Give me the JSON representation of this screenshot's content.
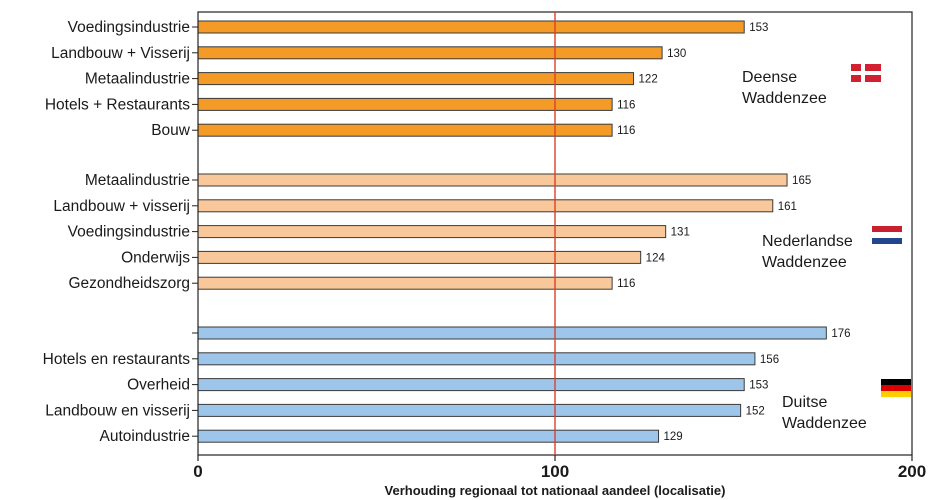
{
  "chart_data": {
    "type": "bar",
    "orientation": "horizontal",
    "xlabel": "Verhouding regionaal tot nationaal aandeel (localisatie)",
    "xlim": [
      0,
      200
    ],
    "xticks": [
      0,
      100,
      200
    ],
    "reference_line": 100,
    "reference_line_color": "#d9412b",
    "groups": [
      {
        "region": [
          "Deense",
          "Waddenzee"
        ],
        "color": "#f39a27",
        "flag": "denmark-flag",
        "categories": [
          "Voedingsindustrie",
          "Landbouw + Visserij",
          "Metaalindustrie",
          "Hotels + Restaurants",
          "Bouw"
        ],
        "values": [
          153,
          130,
          122,
          116,
          116
        ]
      },
      {
        "region": [
          "Nederlandse",
          "Waddenzee"
        ],
        "color": "#f9c89a",
        "flag": "netherlands-flag",
        "categories": [
          "Metaalindustrie",
          "Landbouw + visserij",
          "Voedingsindustrie",
          "Onderwijs",
          "Gezondheidszorg"
        ],
        "values": [
          165,
          161,
          131,
          124,
          116
        ]
      },
      {
        "region": [
          "Duitse",
          "Waddenzee"
        ],
        "color": "#9dc6ea",
        "flag": "germany-flag",
        "categories": [
          "",
          "Hotels en restaurants",
          "Overheid",
          "Landbouw en visserij",
          "Autoindustrie"
        ],
        "values": [
          176,
          156,
          153,
          152,
          129
        ]
      }
    ]
  }
}
